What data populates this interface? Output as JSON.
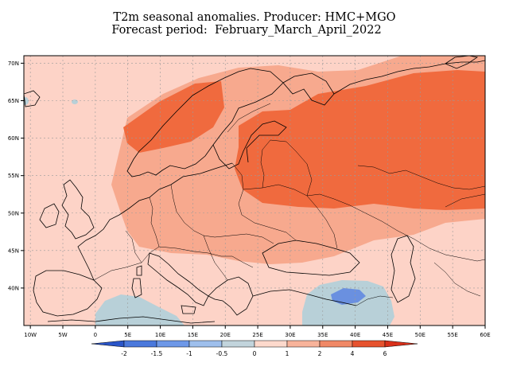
{
  "header": {
    "title_line1": "T2m seasonal anomalies. Producer: HMC+MGO",
    "title_line2": "Forecast period:  February_March_April_2022"
  },
  "map": {
    "extent": {
      "lon": [
        -11,
        60
      ],
      "lat": [
        35,
        71
      ]
    },
    "lat_ticks": [
      {
        "value": 70,
        "label": "70N"
      },
      {
        "value": 65,
        "label": "65N"
      },
      {
        "value": 60,
        "label": "60N"
      },
      {
        "value": 55,
        "label": "55N"
      },
      {
        "value": 50,
        "label": "50N"
      },
      {
        "value": 45,
        "label": "45N"
      },
      {
        "value": 40,
        "label": "40N"
      }
    ],
    "lon_ticks": [
      {
        "value": -10,
        "label": "10W"
      },
      {
        "value": -5,
        "label": "5W"
      },
      {
        "value": 0,
        "label": "0"
      },
      {
        "value": 5,
        "label": "5E"
      },
      {
        "value": 10,
        "label": "10E"
      },
      {
        "value": 15,
        "label": "15E"
      },
      {
        "value": 20,
        "label": "20E"
      },
      {
        "value": 25,
        "label": "25E"
      },
      {
        "value": 30,
        "label": "30E"
      },
      {
        "value": 35,
        "label": "35E"
      },
      {
        "value": 40,
        "label": "40E"
      },
      {
        "value": 45,
        "label": "45E"
      },
      {
        "value": 50,
        "label": "50E"
      },
      {
        "value": 55,
        "label": "55E"
      },
      {
        "value": 60,
        "label": "60E"
      }
    ],
    "gridlines": true
  },
  "colorbar": {
    "labels": [
      "-2",
      "-1.5",
      "-1",
      "-0.5",
      "0",
      "1",
      "2",
      "4",
      "6"
    ],
    "colors": [
      "#2a55c8",
      "#4a78dc",
      "#6e98e8",
      "#9ebfec",
      "#c2d4dc",
      "#fdd9cc",
      "#f8b39a",
      "#f08866",
      "#e6522e",
      "#d8301a"
    ]
  },
  "legend_colors": {
    "weak_warm": "#fdd3c7",
    "moderate_warm": "#f7a98e",
    "strong_warm": "#f06a3e",
    "weak_cold": "#b8d0d8",
    "moderate_cold": "#6a90e0"
  }
}
